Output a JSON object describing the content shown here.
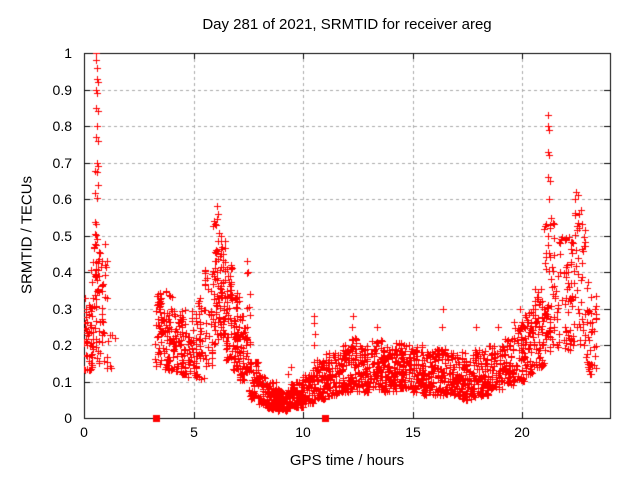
{
  "chart_data": {
    "type": "scatter",
    "title": "Day 281 of 2021, SRMTID for receiver areg",
    "xlabel": "GPS time / hours",
    "ylabel": "SRMTID / TECUs",
    "xlim": [
      0,
      24
    ],
    "ylim": [
      0,
      1
    ],
    "xticks": [
      [
        0,
        "0"
      ],
      [
        5,
        "5"
      ],
      [
        10,
        "10"
      ],
      [
        15,
        "15"
      ],
      [
        20,
        "20"
      ]
    ],
    "yticks": [
      [
        0,
        "0"
      ],
      [
        0.1,
        "0.1"
      ],
      [
        0.2,
        "0.2"
      ],
      [
        0.3,
        "0.3"
      ],
      [
        0.4,
        "0.4"
      ],
      [
        0.5,
        "0.5"
      ],
      [
        0.6,
        "0.6"
      ],
      [
        0.7,
        "0.7"
      ],
      [
        0.8,
        "0.8"
      ],
      [
        0.9,
        "0.9"
      ],
      [
        1,
        "1"
      ]
    ],
    "grid": true,
    "legend": "none",
    "colors": {
      "marker": "#ff0000",
      "grid": "#aaaaaa",
      "border": "#000000",
      "background": "#ffffff",
      "text": "#000000"
    },
    "seed": 42,
    "skew": 1.3,
    "x_snap": 0.04,
    "series": [
      {
        "name": "srmtid",
        "marker": "plus",
        "color": "#ff0000",
        "bands": [
          [
            0.02,
            0.4,
            45,
            0.13,
            0.33
          ],
          [
            0.33,
            0.55,
            22,
            0.17,
            0.52
          ],
          [
            0.45,
            0.72,
            28,
            0.3,
            0.68
          ],
          [
            0.6,
            1.05,
            35,
            0.15,
            0.48
          ],
          [
            1.0,
            1.4,
            9,
            0.13,
            0.26
          ],
          [
            3.25,
            3.65,
            50,
            0.14,
            0.35
          ],
          [
            3.65,
            4.15,
            60,
            0.13,
            0.35
          ],
          [
            4.15,
            4.65,
            55,
            0.12,
            0.3
          ],
          [
            4.65,
            5.15,
            50,
            0.11,
            0.3
          ],
          [
            5.15,
            5.5,
            32,
            0.1,
            0.33
          ],
          [
            5.5,
            5.9,
            36,
            0.14,
            0.42
          ],
          [
            5.9,
            6.15,
            40,
            0.2,
            0.55
          ],
          [
            6.15,
            6.45,
            48,
            0.22,
            0.5
          ],
          [
            6.45,
            6.8,
            52,
            0.16,
            0.42
          ],
          [
            6.8,
            7.1,
            52,
            0.13,
            0.35
          ],
          [
            7.1,
            7.4,
            45,
            0.1,
            0.28
          ],
          [
            7.38,
            7.58,
            16,
            0.12,
            0.43
          ],
          [
            7.55,
            7.95,
            45,
            0.05,
            0.16
          ],
          [
            7.95,
            8.3,
            45,
            0.035,
            0.12
          ],
          [
            8.3,
            8.8,
            70,
            0.025,
            0.1
          ],
          [
            8.8,
            9.4,
            85,
            0.02,
            0.08
          ],
          [
            9.4,
            10.0,
            75,
            0.03,
            0.1
          ],
          [
            10.0,
            10.45,
            55,
            0.04,
            0.12
          ],
          [
            10.45,
            11.0,
            70,
            0.05,
            0.16
          ],
          [
            11.0,
            11.6,
            70,
            0.06,
            0.18
          ],
          [
            11.6,
            12.15,
            70,
            0.07,
            0.2
          ],
          [
            12.15,
            12.45,
            45,
            0.08,
            0.22
          ],
          [
            12.45,
            13.05,
            75,
            0.07,
            0.2
          ],
          [
            13.05,
            13.65,
            75,
            0.08,
            0.22
          ],
          [
            13.65,
            14.25,
            75,
            0.07,
            0.2
          ],
          [
            14.25,
            14.85,
            75,
            0.08,
            0.21
          ],
          [
            14.85,
            15.45,
            75,
            0.07,
            0.2
          ],
          [
            15.45,
            16.05,
            75,
            0.06,
            0.19
          ],
          [
            16.05,
            16.65,
            70,
            0.06,
            0.19
          ],
          [
            16.65,
            17.25,
            70,
            0.06,
            0.18
          ],
          [
            17.25,
            17.85,
            70,
            0.05,
            0.18
          ],
          [
            17.85,
            18.45,
            70,
            0.06,
            0.19
          ],
          [
            18.45,
            19.05,
            65,
            0.08,
            0.2
          ],
          [
            19.05,
            19.6,
            60,
            0.09,
            0.22
          ],
          [
            19.6,
            20.1,
            55,
            0.1,
            0.27
          ],
          [
            20.1,
            20.6,
            55,
            0.12,
            0.31
          ],
          [
            20.6,
            21.0,
            50,
            0.14,
            0.36
          ],
          [
            21.0,
            21.45,
            52,
            0.18,
            0.55
          ],
          [
            21.45,
            22.2,
            60,
            0.18,
            0.5
          ],
          [
            22.2,
            22.9,
            58,
            0.2,
            0.58
          ],
          [
            22.9,
            23.4,
            38,
            0.12,
            0.38
          ]
        ],
        "points": [
          [
            0.55,
            1.0
          ],
          [
            0.57,
            0.98
          ],
          [
            0.6,
            0.96
          ],
          [
            0.58,
            0.93
          ],
          [
            0.62,
            0.92
          ],
          [
            0.56,
            0.9
          ],
          [
            0.6,
            0.89
          ],
          [
            0.57,
            0.85
          ],
          [
            0.63,
            0.84
          ],
          [
            0.59,
            0.8
          ],
          [
            0.55,
            0.77
          ],
          [
            0.62,
            0.76
          ],
          [
            0.58,
            0.7
          ],
          [
            0.66,
            0.69
          ],
          [
            6.05,
            0.58
          ],
          [
            6.1,
            0.56
          ],
          [
            6.0,
            0.53
          ],
          [
            7.45,
            0.43
          ],
          [
            7.48,
            0.4
          ],
          [
            9.3,
            0.12
          ],
          [
            9.45,
            0.14
          ],
          [
            10.5,
            0.2
          ],
          [
            10.52,
            0.23
          ],
          [
            10.48,
            0.26
          ],
          [
            10.5,
            0.28
          ],
          [
            12.25,
            0.25
          ],
          [
            12.28,
            0.28
          ],
          [
            13.35,
            0.25
          ],
          [
            16.35,
            0.25
          ],
          [
            16.38,
            0.3
          ],
          [
            17.9,
            0.25
          ],
          [
            18.9,
            0.25
          ],
          [
            19.9,
            0.3
          ],
          [
            21.15,
            0.83
          ],
          [
            21.18,
            0.8
          ],
          [
            21.2,
            0.79
          ],
          [
            21.15,
            0.73
          ],
          [
            21.22,
            0.72
          ],
          [
            21.18,
            0.66
          ],
          [
            21.25,
            0.65
          ],
          [
            21.2,
            0.6
          ],
          [
            22.45,
            0.62
          ],
          [
            22.55,
            0.61
          ],
          [
            22.4,
            0.6
          ],
          [
            22.6,
            0.56
          ],
          [
            23.05,
            0.13
          ],
          [
            23.15,
            0.12
          ],
          [
            23.3,
            0.3
          ],
          [
            23.35,
            0.27
          ]
        ]
      },
      {
        "name": "event-markers",
        "marker": "filled-square",
        "color": "#ff0000",
        "points": [
          [
            3.3,
            0
          ],
          [
            11.0,
            0
          ]
        ]
      }
    ]
  }
}
